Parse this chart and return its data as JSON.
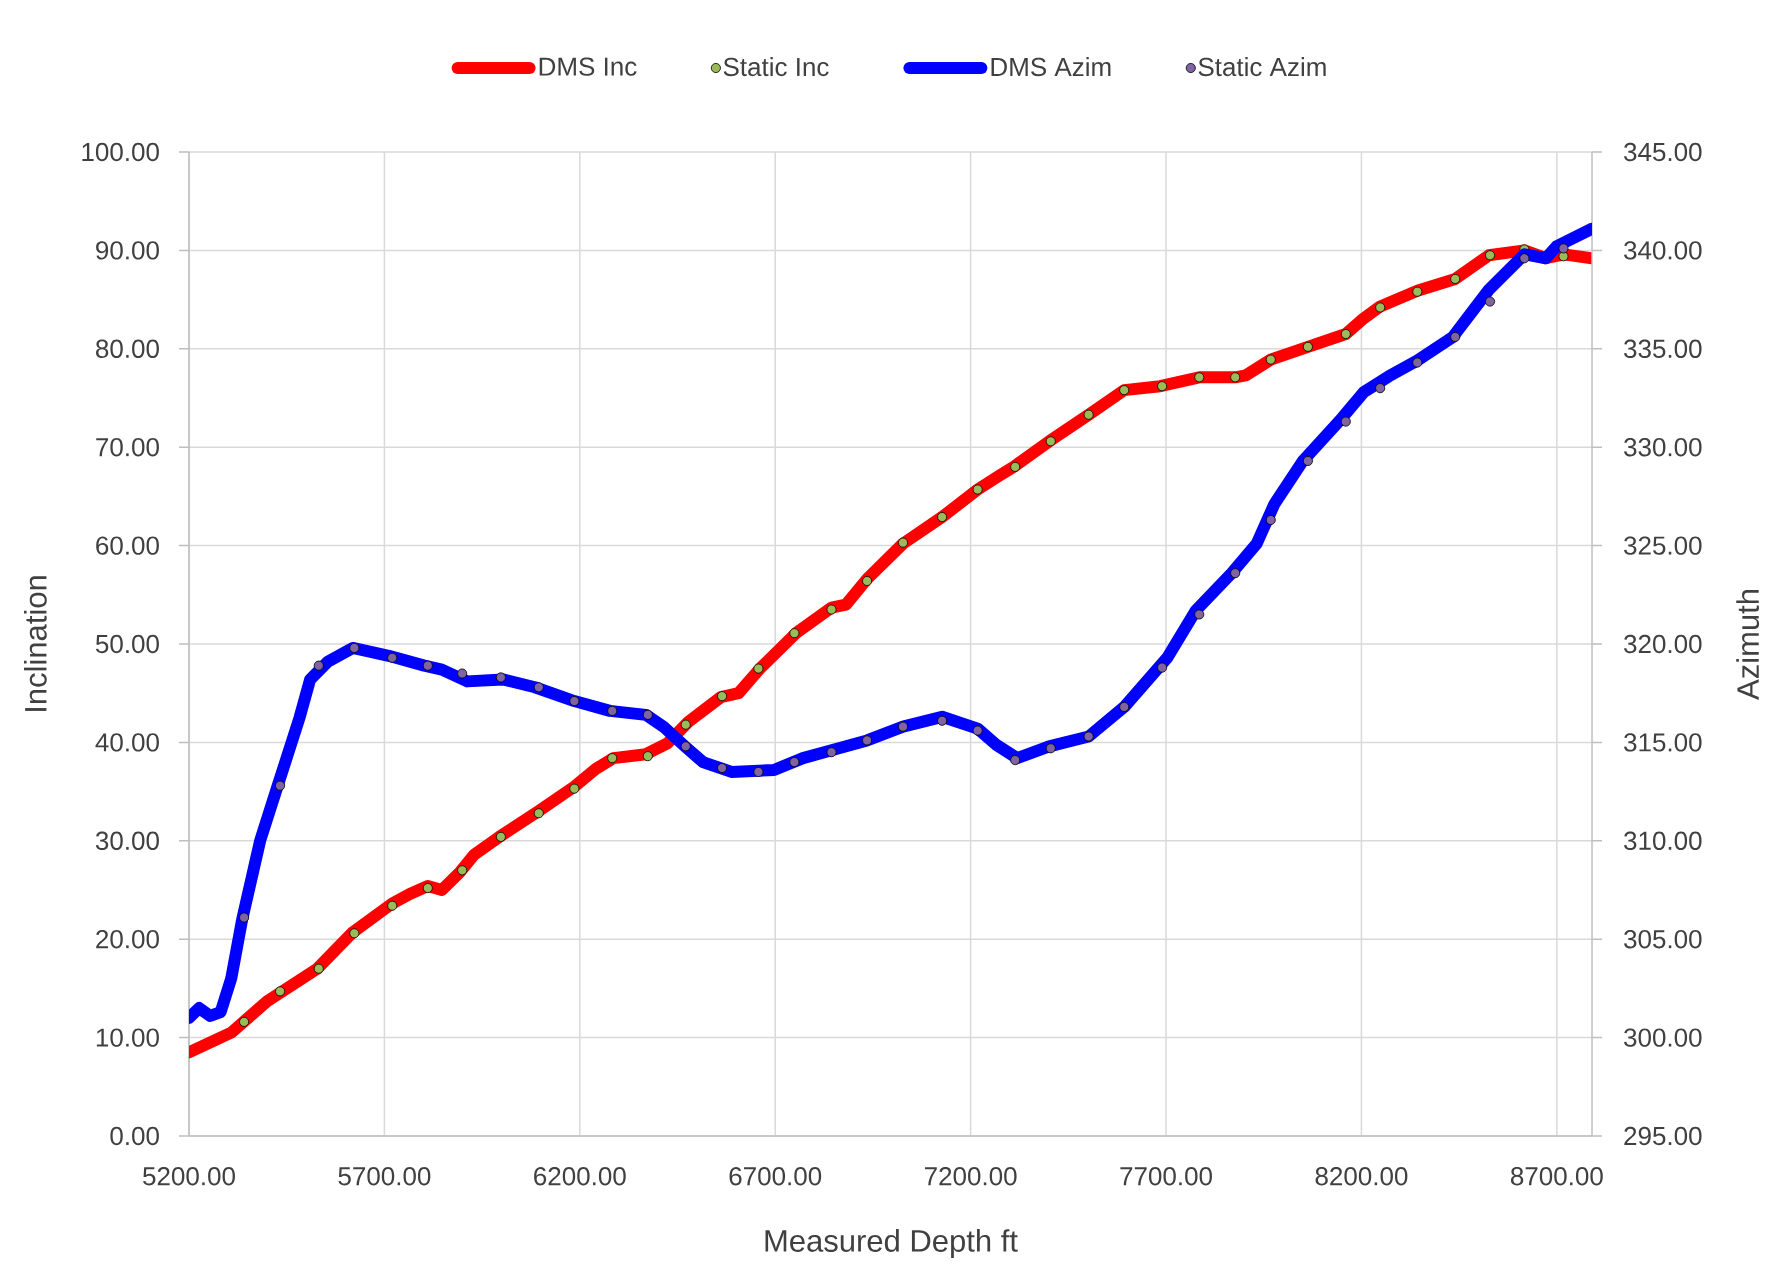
{
  "chart_data": {
    "type": "line",
    "xlabel": "Measured Depth ft",
    "ylabel": "Inclination",
    "y2label": "Azimuth",
    "xlim": [
      5200,
      8790
    ],
    "xticks": [
      {
        "value": 5200,
        "label": "5200.00"
      },
      {
        "value": 5700,
        "label": "5700.00"
      },
      {
        "value": 6200,
        "label": "6200.00"
      },
      {
        "value": 6700,
        "label": "6700.00"
      },
      {
        "value": 7200,
        "label": "7200.00"
      },
      {
        "value": 7700,
        "label": "7700.00"
      },
      {
        "value": 8200,
        "label": "8200.00"
      },
      {
        "value": 8700,
        "label": "8700.00"
      }
    ],
    "ylim": [
      0,
      100
    ],
    "yticks": [
      {
        "value": 0,
        "label": "0.00"
      },
      {
        "value": 10,
        "label": "10.00"
      },
      {
        "value": 20,
        "label": "20.00"
      },
      {
        "value": 30,
        "label": "30.00"
      },
      {
        "value": 40,
        "label": "40.00"
      },
      {
        "value": 50,
        "label": "50.00"
      },
      {
        "value": 60,
        "label": "60.00"
      },
      {
        "value": 70,
        "label": "70.00"
      },
      {
        "value": 80,
        "label": "80.00"
      },
      {
        "value": 90,
        "label": "90.00"
      },
      {
        "value": 100,
        "label": "100.00"
      }
    ],
    "y2lim": [
      295,
      345
    ],
    "y2ticks": [
      {
        "value": 295,
        "label": "295.00"
      },
      {
        "value": 300,
        "label": "300.00"
      },
      {
        "value": 305,
        "label": "305.00"
      },
      {
        "value": 310,
        "label": "310.00"
      },
      {
        "value": 315,
        "label": "315.00"
      },
      {
        "value": 320,
        "label": "320.00"
      },
      {
        "value": 325,
        "label": "325.00"
      },
      {
        "value": 330,
        "label": "330.00"
      },
      {
        "value": 335,
        "label": "335.00"
      },
      {
        "value": 340,
        "label": "340.00"
      },
      {
        "value": 345,
        "label": "345.00"
      }
    ],
    "grid": true,
    "legend": "top",
    "series": [
      {
        "name": "DMS Inc",
        "color": "#ff0000",
        "x": [
          5200,
          5308,
          5400,
          5528,
          5619,
          5719,
          5765,
          5811,
          5847,
          5893,
          5930,
          5994,
          6094,
          6186,
          6241,
          6286,
          6369,
          6424,
          6478,
          6561,
          6606,
          6661,
          6753,
          6844,
          6881,
          6935,
          7027,
          7127,
          7218,
          7273,
          7310,
          7401,
          7502,
          7593,
          7685,
          7785,
          7877,
          7904,
          7968,
          8063,
          8160,
          8206,
          8248,
          8343,
          8440,
          8526,
          8617,
          8672,
          8718,
          8790
        ],
        "values": [
          8.5,
          10.5,
          13.7,
          17.0,
          20.7,
          23.6,
          24.6,
          25.4,
          25.0,
          26.8,
          28.6,
          30.4,
          33.0,
          35.5,
          37.3,
          38.4,
          38.8,
          39.9,
          42.1,
          44.6,
          45.0,
          47.5,
          51.1,
          53.7,
          54.0,
          56.6,
          60.2,
          62.9,
          65.7,
          67.1,
          68.0,
          70.6,
          73.3,
          75.8,
          76.2,
          77.1,
          77.1,
          77.3,
          78.9,
          80.2,
          81.5,
          83.1,
          84.3,
          85.9,
          87.1,
          89.5,
          90.0,
          89.2,
          89.6,
          89.2
        ]
      },
      {
        "name": "Static Inc",
        "type": "scatter",
        "color": "#9bbb59",
        "marker": "circle",
        "x": [
          5341,
          5433,
          5532,
          5623,
          5720,
          5811,
          5899,
          5998,
          6095,
          6186,
          6283,
          6374,
          6471,
          6564,
          6657,
          6749,
          6844,
          6935,
          7027,
          7127,
          7218,
          7314,
          7405,
          7502,
          7593,
          7690,
          7785,
          7877,
          7968,
          8063,
          8160,
          8248,
          8343,
          8440,
          8529,
          8617,
          8717
        ],
        "values": [
          11.6,
          14.7,
          17.0,
          20.6,
          23.4,
          25.2,
          27.0,
          30.4,
          32.8,
          35.3,
          38.4,
          38.6,
          41.8,
          44.7,
          47.5,
          51.1,
          53.5,
          56.4,
          60.3,
          62.9,
          65.7,
          68.0,
          70.6,
          73.3,
          75.8,
          76.2,
          77.1,
          77.1,
          78.9,
          80.2,
          81.5,
          84.2,
          85.8,
          87.1,
          89.5,
          90.1,
          89.4
        ]
      },
      {
        "name": "DMS Azim",
        "color": "#0000ff",
        "axis": "y2",
        "x": [
          5200,
          5226,
          5254,
          5281,
          5308,
          5336,
          5382,
          5427,
          5482,
          5510,
          5555,
          5619,
          5711,
          5802,
          5847,
          5912,
          6003,
          6085,
          6186,
          6277,
          6369,
          6414,
          6469,
          6515,
          6588,
          6697,
          6771,
          6844,
          6935,
          7027,
          7127,
          7218,
          7264,
          7319,
          7401,
          7502,
          7593,
          7703,
          7776,
          7868,
          7932,
          7977,
          8050,
          8151,
          8206,
          8270,
          8343,
          8434,
          8526,
          8617,
          8672,
          8699,
          8790
        ],
        "values": [
          301.0,
          301.5,
          301.1,
          301.3,
          303.0,
          306.0,
          310.0,
          312.8,
          316.2,
          318.2,
          319.1,
          319.8,
          319.4,
          318.9,
          318.7,
          318.1,
          318.2,
          317.8,
          317.1,
          316.6,
          316.4,
          315.8,
          314.8,
          314.0,
          313.5,
          313.6,
          314.2,
          314.6,
          315.1,
          315.8,
          316.3,
          315.7,
          314.9,
          314.2,
          314.8,
          315.3,
          316.8,
          319.3,
          321.7,
          323.6,
          325.1,
          327.1,
          329.3,
          331.5,
          332.8,
          333.6,
          334.4,
          335.6,
          338.0,
          339.8,
          339.6,
          340.2,
          341.1
        ]
      },
      {
        "name": "Static Azim",
        "type": "scatter",
        "color": "#8064a2",
        "marker": "circle",
        "axis": "y2",
        "x": [
          5341,
          5433,
          5532,
          5623,
          5720,
          5811,
          5899,
          5998,
          6095,
          6186,
          6283,
          6374,
          6471,
          6564,
          6657,
          6749,
          6844,
          6935,
          7027,
          7127,
          7218,
          7314,
          7405,
          7502,
          7593,
          7690,
          7785,
          7877,
          7968,
          8063,
          8160,
          8248,
          8343,
          8440,
          8529,
          8617,
          8717
        ],
        "values": [
          306.1,
          312.8,
          318.9,
          319.8,
          319.3,
          318.9,
          318.5,
          318.3,
          317.8,
          317.1,
          316.6,
          316.4,
          314.8,
          313.7,
          313.5,
          314.0,
          314.5,
          315.1,
          315.8,
          316.1,
          315.6,
          314.1,
          314.7,
          315.3,
          316.8,
          318.8,
          321.5,
          323.6,
          326.3,
          329.3,
          331.3,
          333.0,
          334.3,
          335.6,
          337.4,
          339.6,
          340.1
        ]
      }
    ]
  }
}
